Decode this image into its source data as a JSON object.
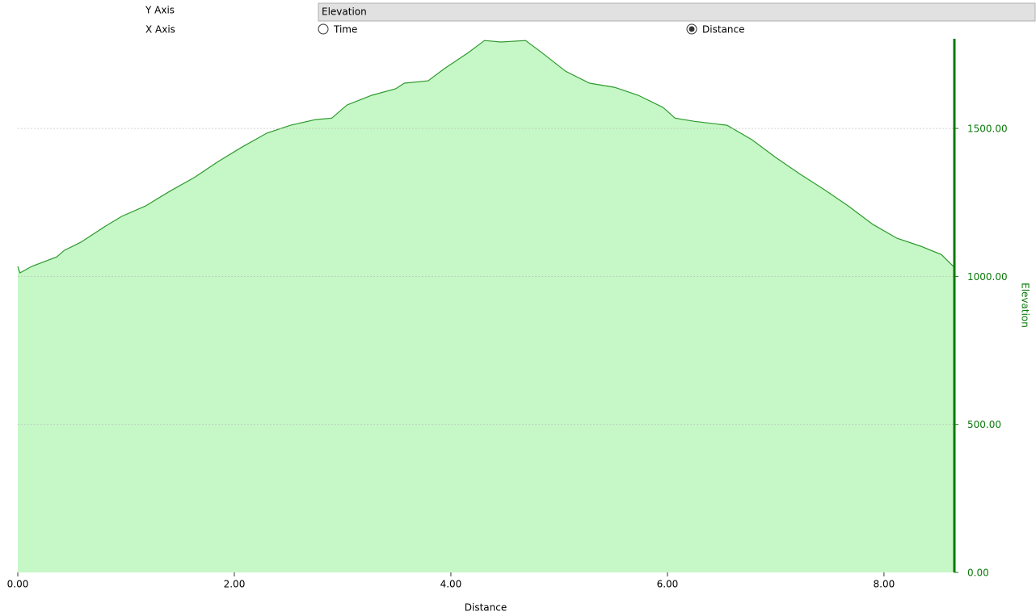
{
  "controls": {
    "y_axis_label": "Y Axis",
    "y_axis_value": "Elevation",
    "x_axis_label": "X Axis",
    "x_axis_options": [
      {
        "label": "Time",
        "selected": false
      },
      {
        "label": "Distance",
        "selected": true
      }
    ]
  },
  "chart_data": {
    "type": "area",
    "x": [
      0,
      0.02,
      0.13,
      0.36,
      0.43,
      0.58,
      0.81,
      0.96,
      1.18,
      1.4,
      1.63,
      1.85,
      2.07,
      2.3,
      2.52,
      2.75,
      2.9,
      3.04,
      3.27,
      3.49,
      3.57,
      3.79,
      3.94,
      4.16,
      4.31,
      4.46,
      4.69,
      4.84,
      5.06,
      5.28,
      5.51,
      5.73,
      5.96,
      6.07,
      6.25,
      6.55,
      6.78,
      7.0,
      7.22,
      7.45,
      7.67,
      7.9,
      8.12,
      8.34,
      8.53,
      8.64
    ],
    "values": [
      1034,
      1012,
      1034,
      1066,
      1088,
      1115,
      1170,
      1203,
      1238,
      1287,
      1334,
      1388,
      1437,
      1484,
      1511,
      1530,
      1535,
      1579,
      1612,
      1634,
      1653,
      1661,
      1702,
      1756,
      1797,
      1792,
      1797,
      1756,
      1693,
      1653,
      1639,
      1612,
      1571,
      1535,
      1524,
      1511,
      1462,
      1402,
      1347,
      1293,
      1238,
      1175,
      1129,
      1102,
      1074,
      1034
    ],
    "color": "#2e9a2e",
    "fill_color": "#c6f7c6",
    "axis_color": "#0a7a0a",
    "x_label": "Distance",
    "y_label": "Elevation",
    "y_axis_side": "right",
    "grid": true,
    "xlim": [
      0,
      8.65
    ],
    "ylim": [
      0,
      1803
    ],
    "xticks": [
      {
        "value": 0,
        "label": "0.00"
      },
      {
        "value": 2,
        "label": "2.00"
      },
      {
        "value": 4,
        "label": "4.00"
      },
      {
        "value": 6,
        "label": "6.00"
      },
      {
        "value": 8,
        "label": "8.00"
      }
    ],
    "yticks": [
      {
        "value": 0,
        "label": "0.00"
      },
      {
        "value": 500,
        "label": "500.00"
      },
      {
        "value": 1000,
        "label": "1000.00"
      },
      {
        "value": 1500,
        "label": "1500.00"
      }
    ]
  }
}
